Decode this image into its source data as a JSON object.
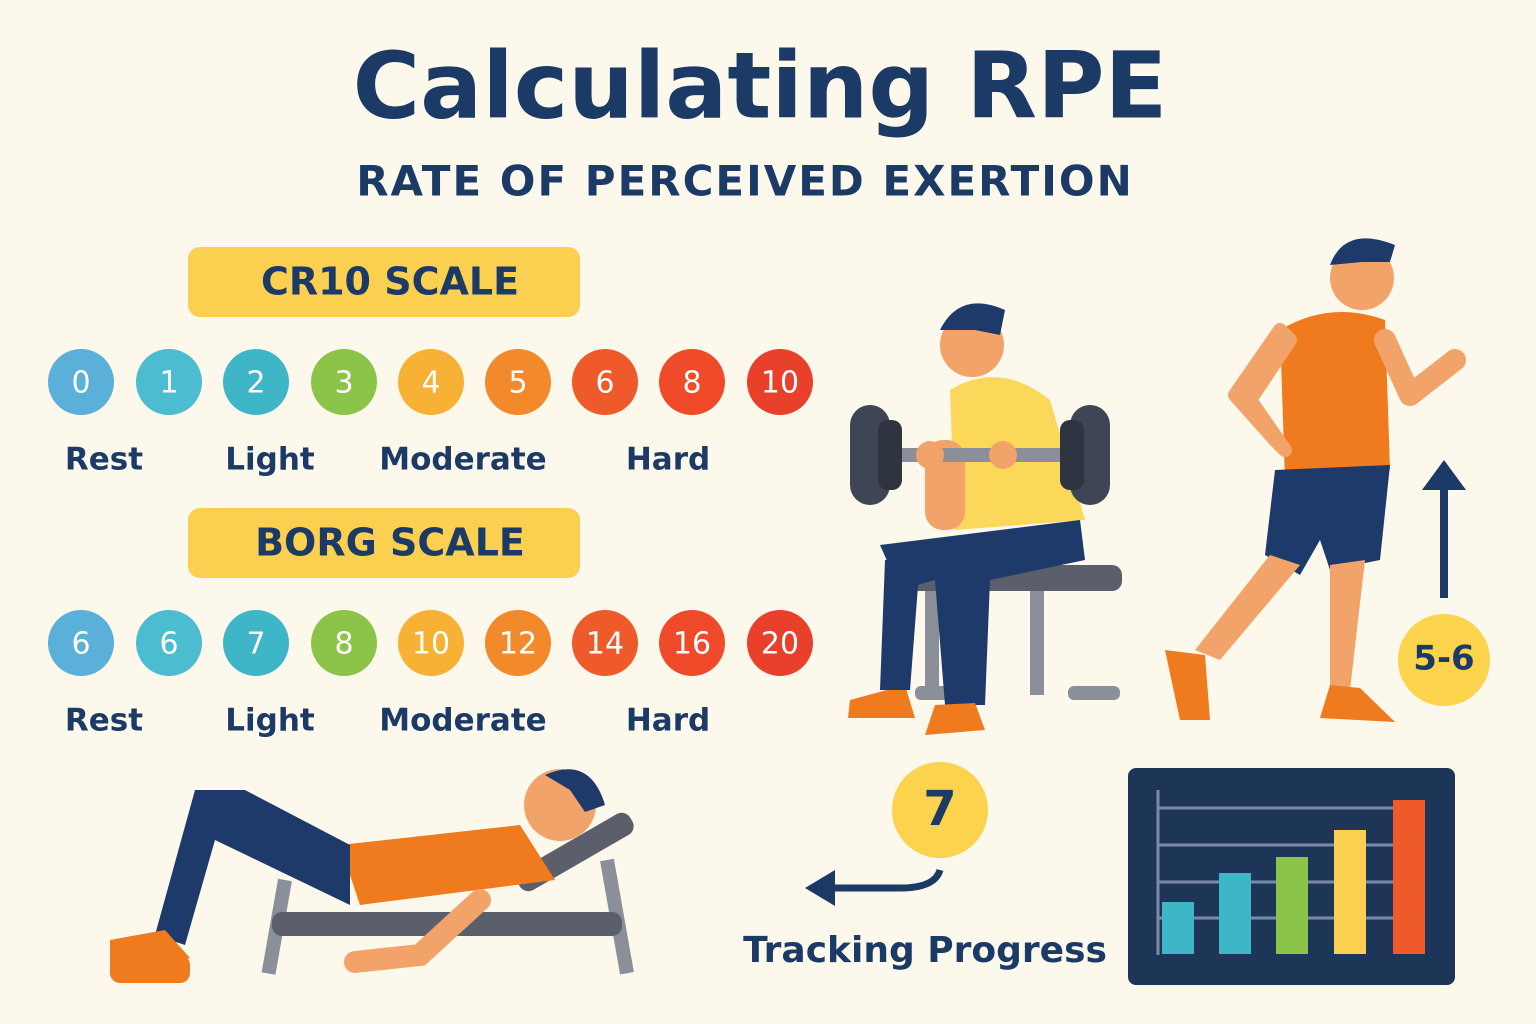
{
  "header": {
    "title": "Calculating RPE",
    "subtitle": "RATE OF PERCEIVED EXERTION"
  },
  "scales": [
    {
      "title": "CR10 SCALE",
      "levels": [
        "0",
        "1",
        "2",
        "3",
        "4",
        "5",
        "6",
        "8",
        "10"
      ],
      "labels": [
        "Rest",
        "Light",
        "Moderate",
        "Hard"
      ]
    },
    {
      "title": "BORG SCALE",
      "levels": [
        "6",
        "6",
        "7",
        "8",
        "10",
        "12",
        "14",
        "16",
        "20"
      ],
      "labels": [
        "Rest",
        "Light",
        "Moderate",
        "Hard"
      ]
    }
  ],
  "badges": {
    "running": "5-6",
    "tracking": "7"
  },
  "tracking": {
    "label": "Tracking Progress"
  }
}
